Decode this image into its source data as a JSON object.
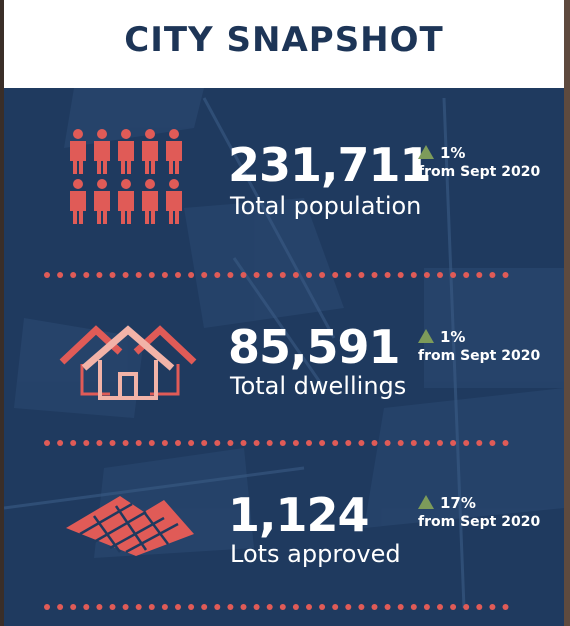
{
  "header": {
    "title": "CITY SNAPSHOT"
  },
  "colors": {
    "navy": "#1f3a5f",
    "title": "#1d3557",
    "accent": "#e05b57",
    "arrow": "#7d9b5a"
  },
  "stats": [
    {
      "value": "231,711",
      "label": "Total population",
      "change_pct": "1%",
      "change_ref": "from Sept 2020",
      "icon": "people-icon"
    },
    {
      "value": "85,591",
      "label": "Total dwellings",
      "change_pct": "1%",
      "change_ref": "from Sept 2020",
      "icon": "houses-icon"
    },
    {
      "value": "1,124",
      "label": "Lots approved",
      "change_pct": "17%",
      "change_ref": "from Sept 2020",
      "icon": "land-lots-icon"
    }
  ]
}
